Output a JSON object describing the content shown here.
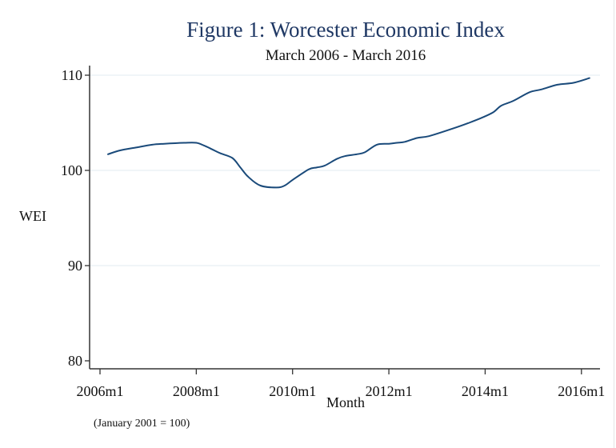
{
  "chart_data": {
    "type": "line",
    "title": "Figure 1: Worcester Economic Index",
    "subtitle": "March 2006 - March 2016",
    "xlabel": "Month",
    "ylabel": "WEI",
    "note": "(January 2001 = 100)",
    "ylim": [
      79,
      111
    ],
    "yticks": [
      80,
      90,
      100,
      110
    ],
    "ytick_labels": [
      "80",
      "90",
      "100",
      "110"
    ],
    "xlim_months": [
      "2006m1",
      "2016m6"
    ],
    "xticks": [
      "2006m1",
      "2008m1",
      "2010m1",
      "2012m1",
      "2014m1",
      "2016m1"
    ],
    "grid": "horizontal",
    "line_color": "#1a4a7a",
    "title_color": "#1f3864",
    "series": [
      {
        "name": "WEI",
        "x": [
          "2006m3",
          "2006m6",
          "2006m10",
          "2007m2",
          "2007m5",
          "2007m10",
          "2008m1",
          "2008m3",
          "2008m5",
          "2008m7",
          "2008m10",
          "2008m12",
          "2009m2",
          "2009m5",
          "2009m9",
          "2009m11",
          "2010m1",
          "2010m5",
          "2010m7",
          "2010m9",
          "2010m12",
          "2011m2",
          "2011m5",
          "2011m7",
          "2011m10",
          "2012m1",
          "2012m3",
          "2012m5",
          "2012m8",
          "2012m11",
          "2013m5",
          "2013m9",
          "2013m12",
          "2014m3",
          "2014m5",
          "2014m8",
          "2014m12",
          "2015m3",
          "2015m7",
          "2015m11",
          "2016m3"
        ],
        "values": [
          101.7,
          102.1,
          102.4,
          102.7,
          102.8,
          102.9,
          102.9,
          102.6,
          102.2,
          101.8,
          101.3,
          100.3,
          99.3,
          98.4,
          98.2,
          98.4,
          99.0,
          100.1,
          100.3,
          100.5,
          101.2,
          101.5,
          101.7,
          101.9,
          102.7,
          102.8,
          102.9,
          103.0,
          103.4,
          103.6,
          104.4,
          105.0,
          105.5,
          106.1,
          106.8,
          107.3,
          108.2,
          108.5,
          109.0,
          109.2,
          109.7
        ]
      }
    ]
  }
}
